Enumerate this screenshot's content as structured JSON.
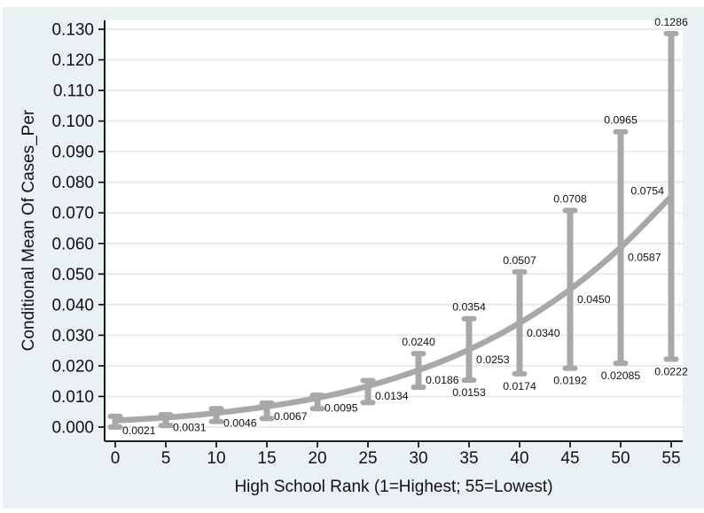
{
  "chart_data": {
    "type": "line",
    "title": "",
    "xlabel": "High School Rank (1=Highest; 55=Lowest)",
    "ylabel": "Conditional Mean Of Cases_Per",
    "x": [
      0,
      5,
      10,
      15,
      20,
      25,
      30,
      35,
      40,
      45,
      50,
      55
    ],
    "series": [
      {
        "name": "conditional-mean",
        "values": [
          0.0021,
          0.0031,
          0.0046,
          0.0067,
          0.0095,
          0.0134,
          0.0186,
          0.0253,
          0.034,
          0.045,
          0.0587,
          0.0754
        ]
      },
      {
        "name": "ci-upper",
        "values": [
          0.0035,
          0.004,
          0.006,
          0.0078,
          0.0104,
          0.0152,
          0.024,
          0.0354,
          0.0507,
          0.0708,
          0.0965,
          0.1286
        ]
      },
      {
        "name": "ci-lower",
        "values": [
          0.0,
          0.0005,
          0.0018,
          0.0028,
          0.006,
          0.008,
          0.013,
          0.0153,
          0.0174,
          0.0192,
          0.02085,
          0.0222
        ]
      }
    ],
    "point_labels": {
      "mean": [
        "0.0021",
        "0.0031",
        "0.0046",
        "0.0067",
        "0.0095",
        "0.0134",
        "0.0186",
        "0.0253",
        "0.0340",
        "0.0450",
        "0.0587",
        "0.0754"
      ],
      "upper": [
        null,
        null,
        null,
        null,
        null,
        null,
        "0.0240",
        "0.0354",
        "0.0507",
        "0.0708",
        "0.0965",
        "0.1286"
      ],
      "lower": [
        null,
        null,
        null,
        null,
        null,
        null,
        null,
        "0.0153",
        "0.0174",
        "0.0192",
        "0.02085",
        "0.0222"
      ]
    },
    "xticks": [
      "0",
      "5",
      "10",
      "15",
      "20",
      "25",
      "30",
      "35",
      "40",
      "45",
      "50",
      "55"
    ],
    "yticks": [
      "0.000",
      "0.010",
      "0.020",
      "0.030",
      "0.040",
      "0.050",
      "0.060",
      "0.070",
      "0.080",
      "0.090",
      "0.100",
      "0.110",
      "0.120",
      "0.130"
    ],
    "xlim": [
      0,
      55
    ],
    "ylim": [
      0,
      0.13
    ],
    "grid": "horizontal",
    "legend": "none",
    "colors": {
      "background": "#eaf1f3",
      "plot_background": "#ffffff",
      "series_gray": "#a8a8a8",
      "gridline": "#e3edef",
      "axis": "#000000",
      "text": "#111111"
    }
  }
}
